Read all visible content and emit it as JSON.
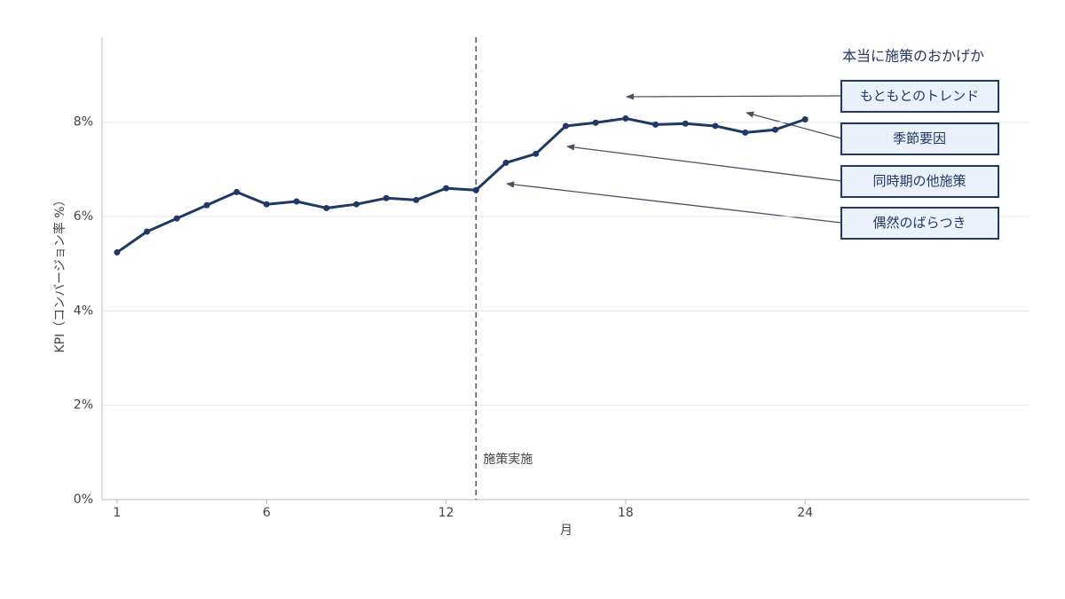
{
  "chart_data": {
    "type": "line",
    "x": [
      1,
      2,
      3,
      4,
      5,
      6,
      7,
      8,
      9,
      10,
      11,
      12,
      13,
      14,
      15,
      16,
      17,
      18,
      19,
      20,
      21,
      22,
      23,
      24
    ],
    "values": [
      5.24,
      5.68,
      5.96,
      6.24,
      6.52,
      6.26,
      6.32,
      6.18,
      6.26,
      6.39,
      6.35,
      6.6,
      6.56,
      7.14,
      7.33,
      7.92,
      7.99,
      8.08,
      7.95,
      7.97,
      7.92,
      7.78,
      7.84,
      8.06
    ],
    "color": "#1f3864",
    "xlabel": "月",
    "ylabel": "KPI（コンバージョン率 %）",
    "xlim": [
      0.5,
      31.5
    ],
    "xticks": [
      1,
      6,
      12,
      18,
      24
    ],
    "ylim": [
      0,
      9.8
    ],
    "yticks": [
      {
        "value": 0,
        "label": "0%"
      },
      {
        "value": 2,
        "label": "2%"
      },
      {
        "value": 4,
        "label": "4%"
      },
      {
        "value": 6,
        "label": "6%"
      },
      {
        "value": 8,
        "label": "8%"
      }
    ],
    "grid": true,
    "vline": {
      "x": 13,
      "label": "施策実施"
    },
    "annotations": {
      "title": "本当に施策のおかげか",
      "items": [
        "もともとのトレンド",
        "季節要因",
        "同時期の他施策",
        "偶然のばらつき"
      ]
    }
  }
}
